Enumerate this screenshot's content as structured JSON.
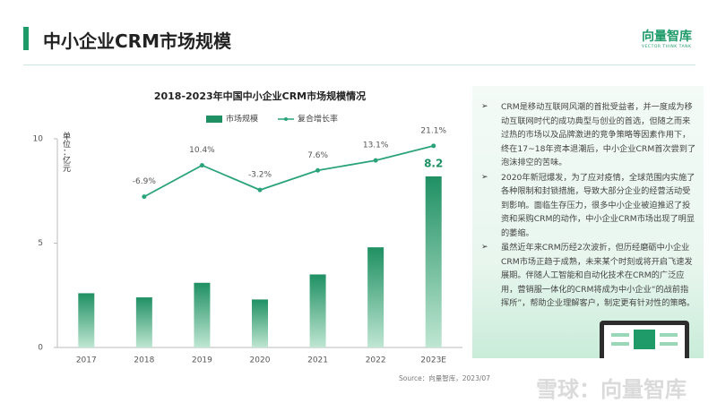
{
  "header": {
    "title": "中小企业CRM市场规模",
    "logo": "向量智库",
    "logo_sub": "VECTOR THINK TANK"
  },
  "chart_data": {
    "type": "bar",
    "title": "2018-2023年中国中小企业CRM市场规模情况",
    "y_label": "单位：亿元",
    "categories": [
      "2017",
      "2018",
      "2019",
      "2020",
      "2021",
      "2022",
      "2023E"
    ],
    "series": [
      {
        "name": "市场规模",
        "color": "#1f9063",
        "type": "bar",
        "values": [
          2.6,
          2.4,
          3.1,
          2.3,
          3.5,
          4.8,
          8.2
        ]
      },
      {
        "name": "复合增长率",
        "color": "#2aa37a",
        "type": "line",
        "axis": "y2",
        "values": [
          null,
          -6.9,
          10.4,
          -3.2,
          7.6,
          13.1,
          21.1
        ],
        "value_labels": [
          null,
          "-6.9%",
          "10.4%",
          "-3.2%",
          "7.6%",
          "13.1%",
          "21.1%"
        ]
      }
    ],
    "ylim": [
      0,
      10
    ],
    "yticks": [
      0,
      5,
      10
    ],
    "y2lim": [
      -90,
      25
    ],
    "grid": false,
    "legend": "top"
  },
  "panel": {
    "bullets": [
      "CRM是移动互联网风潮的首批受益者，并一度成为移动互联网时代的成功典型与创业的首选，但随之而来过热的市场以及品牌激进的竞争策略等因素作用下，终在17~18年资本退潮后，中小企业CRM首次尝到了泡沫排空的苦味。",
      "2020年新冠爆发，为了应对疫情，全球范围内实施了各种限制和封锁措施，导致大部分企业的经营活动受到影响。面临生存压力，很多中小企业被迫推迟了投资和采购CRM的动作，中小企业CRM市场出现了明显的萎缩。",
      "虽然近年来CRM历经2次波折，但历经磨砺中小企业CRM市场正趋于成熟，未来某个时刻或将开启飞速发展期。伴随人工智能和自动化技术在CRM的广泛应用，营销服一体化的CRM将成为中小企业“的战前指挥所”，帮助企业理解客户，制定更有针对性的策略。"
    ]
  },
  "source": "Source：向量智库，2023/07",
  "watermark": "雪球：向量智库"
}
